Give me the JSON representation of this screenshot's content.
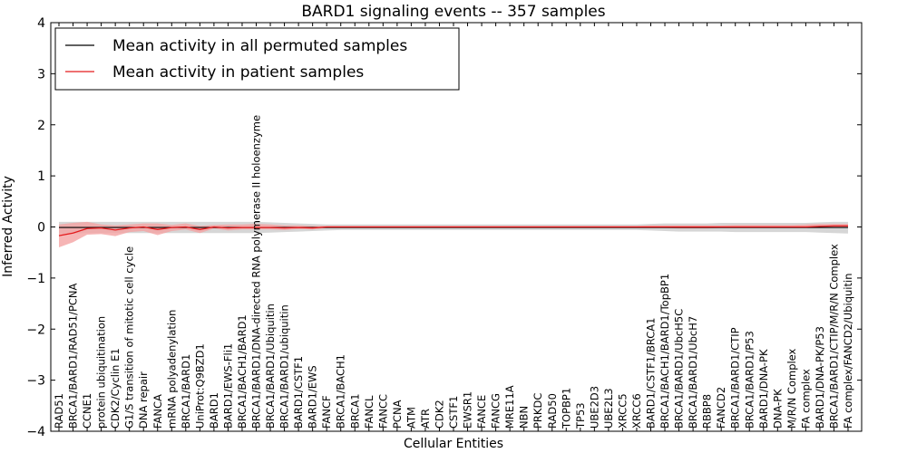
{
  "chart_data": {
    "type": "line",
    "title": "BARD1 signaling events -- 357 samples",
    "xlabel": "Cellular Entities",
    "ylabel": "Inferred Activity",
    "ylim": [
      -4,
      4
    ],
    "yticks": [
      -4,
      -3,
      -2,
      -1,
      0,
      1,
      2,
      3,
      4
    ],
    "ytick_labels": [
      "−4",
      "−3",
      "−2",
      "−1",
      "0",
      "1",
      "2",
      "3",
      "4"
    ],
    "legend_position": "top-left",
    "colors": {
      "permuted_line": "#000000",
      "permuted_band": "#c8c8c8",
      "patient_line": "#e41a1c",
      "patient_band": "#f4a3a3"
    },
    "categories": [
      "RAD51",
      "BRCA1/BARD1/RAD51/PCNA",
      "CCNE1",
      "protein ubiquitination",
      "CDK2/Cyclin E1",
      "G1/S transition of mitotic cell cycle",
      "DNA repair",
      "FANCA",
      "mRNA polyadenylation",
      "BRCA1/BARD1",
      "UniProt:Q9BZD1",
      "BARD1",
      "BARD1/EWS-Fli1",
      "BRCA1/BACH1/BARD1",
      "BRCA1/BARD1/DNA-directed RNA polymerase II holoenzyme",
      "BRCA1/BARD1/Ubiquitin",
      "BRCA1/BARD1/ubiquitin",
      "BARD1/CSTF1",
      "BARD1/EWS",
      "FANCF",
      "BRCA1/BACH1",
      "BRCA1",
      "FANCL",
      "FANCC",
      "PCNA",
      "ATM",
      "ATR",
      "CDK2",
      "CSTF1",
      "EWSR1",
      "FANCE",
      "FANCG",
      "MRE11A",
      "NBN",
      "PRKDC",
      "RAD50",
      "TOPBP1",
      "TP53",
      "UBE2D3",
      "UBE2L3",
      "XRCC5",
      "XRCC6",
      "BARD1/CSTF1/BRCA1",
      "BRCA1/BACH1/BARD1/TopBP1",
      "BRCA1/BARD1/UbcH5C",
      "BRCA1/BARD1/UbcH7",
      "RBBP8",
      "FANCD2",
      "BRCA1/BARD1/CTIP",
      "BRCA1/BARD1/P53",
      "BARD1/DNA-PK",
      "DNA-PK",
      "M/R/N Complex",
      "FA complex",
      "BARD1/DNA-PK/P53",
      "BRCA1/BARD1/CTIP/M/R/N Complex",
      "FA complex/FANCD2/Ubiquitin"
    ],
    "series": [
      {
        "name": "Mean activity in all permuted samples",
        "values": [
          -0.01,
          -0.01,
          -0.01,
          -0.01,
          -0.01,
          -0.01,
          -0.01,
          -0.01,
          -0.01,
          -0.01,
          -0.01,
          -0.01,
          -0.01,
          -0.01,
          -0.01,
          -0.01,
          -0.01,
          -0.01,
          -0.01,
          -0.01,
          -0.01,
          -0.01,
          -0.01,
          -0.01,
          -0.01,
          -0.01,
          -0.01,
          -0.01,
          -0.01,
          -0.01,
          -0.01,
          -0.01,
          -0.01,
          -0.01,
          -0.01,
          -0.01,
          -0.01,
          -0.01,
          -0.01,
          -0.01,
          -0.01,
          -0.01,
          -0.01,
          -0.01,
          -0.01,
          -0.01,
          -0.01,
          -0.01,
          -0.01,
          -0.01,
          -0.01,
          -0.01,
          -0.01,
          -0.01,
          -0.01,
          -0.01,
          -0.01
        ],
        "lower": [
          -0.14,
          -0.13,
          -0.12,
          -0.12,
          -0.12,
          -0.12,
          -0.12,
          -0.12,
          -0.12,
          -0.12,
          -0.12,
          -0.12,
          -0.12,
          -0.12,
          -0.12,
          -0.11,
          -0.1,
          -0.09,
          -0.08,
          -0.07,
          -0.06,
          -0.06,
          -0.06,
          -0.06,
          -0.06,
          -0.06,
          -0.06,
          -0.06,
          -0.06,
          -0.06,
          -0.06,
          -0.06,
          -0.06,
          -0.06,
          -0.06,
          -0.06,
          -0.06,
          -0.06,
          -0.06,
          -0.06,
          -0.06,
          -0.06,
          -0.07,
          -0.08,
          -0.09,
          -0.09,
          -0.09,
          -0.09,
          -0.1,
          -0.1,
          -0.1,
          -0.1,
          -0.1,
          -0.1,
          -0.11,
          -0.12,
          -0.13
        ],
        "upper": [
          0.1,
          0.1,
          0.1,
          0.1,
          0.1,
          0.1,
          0.1,
          0.1,
          0.1,
          0.1,
          0.1,
          0.1,
          0.1,
          0.1,
          0.1,
          0.09,
          0.08,
          0.07,
          0.06,
          0.05,
          0.05,
          0.05,
          0.05,
          0.05,
          0.05,
          0.05,
          0.05,
          0.05,
          0.05,
          0.05,
          0.05,
          0.05,
          0.05,
          0.05,
          0.05,
          0.05,
          0.05,
          0.05,
          0.05,
          0.05,
          0.05,
          0.05,
          0.06,
          0.07,
          0.07,
          0.07,
          0.07,
          0.08,
          0.08,
          0.08,
          0.08,
          0.08,
          0.08,
          0.08,
          0.09,
          0.1,
          0.1
        ]
      },
      {
        "name": "Mean activity in patient samples",
        "values": [
          -0.17,
          -0.12,
          -0.03,
          -0.02,
          -0.06,
          -0.02,
          0.0,
          -0.05,
          -0.01,
          0.0,
          -0.05,
          0.0,
          -0.02,
          -0.01,
          -0.01,
          -0.01,
          -0.02,
          -0.01,
          -0.02,
          0.0,
          0.0,
          0.0,
          0.0,
          0.0,
          0.0,
          0.0,
          0.0,
          0.0,
          0.0,
          0.0,
          0.0,
          0.0,
          0.0,
          0.0,
          0.0,
          0.0,
          0.0,
          0.0,
          0.0,
          0.0,
          0.0,
          0.0,
          0.0,
          0.0,
          0.0,
          0.0,
          0.0,
          0.0,
          0.0,
          0.0,
          0.0,
          0.0,
          0.0,
          0.0,
          0.01,
          0.02,
          0.02
        ],
        "lower": [
          -0.4,
          -0.3,
          -0.15,
          -0.14,
          -0.18,
          -0.1,
          -0.08,
          -0.16,
          -0.08,
          -0.05,
          -0.12,
          -0.03,
          -0.07,
          -0.05,
          -0.05,
          -0.05,
          -0.06,
          -0.04,
          -0.05,
          -0.02,
          -0.02,
          -0.02,
          -0.02,
          -0.02,
          -0.02,
          -0.02,
          -0.02,
          -0.02,
          -0.02,
          -0.02,
          -0.02,
          -0.02,
          -0.02,
          -0.02,
          -0.02,
          -0.02,
          -0.02,
          -0.02,
          -0.02,
          -0.02,
          -0.02,
          -0.02,
          -0.02,
          -0.02,
          -0.03,
          -0.03,
          -0.03,
          -0.02,
          -0.02,
          -0.02,
          -0.02,
          -0.02,
          -0.02,
          -0.02,
          -0.02,
          -0.01,
          -0.01
        ],
        "upper": [
          0.05,
          0.08,
          0.1,
          0.05,
          0.03,
          0.05,
          0.07,
          0.07,
          0.04,
          0.07,
          0.02,
          0.04,
          0.05,
          0.05,
          0.06,
          0.05,
          0.03,
          0.03,
          0.02,
          0.02,
          0.02,
          0.02,
          0.02,
          0.02,
          0.02,
          0.02,
          0.02,
          0.02,
          0.02,
          0.02,
          0.02,
          0.02,
          0.02,
          0.02,
          0.02,
          0.02,
          0.02,
          0.02,
          0.02,
          0.02,
          0.02,
          0.02,
          0.03,
          0.03,
          0.03,
          0.03,
          0.03,
          0.03,
          0.04,
          0.04,
          0.04,
          0.04,
          0.04,
          0.05,
          0.06,
          0.06,
          0.06
        ]
      }
    ]
  }
}
